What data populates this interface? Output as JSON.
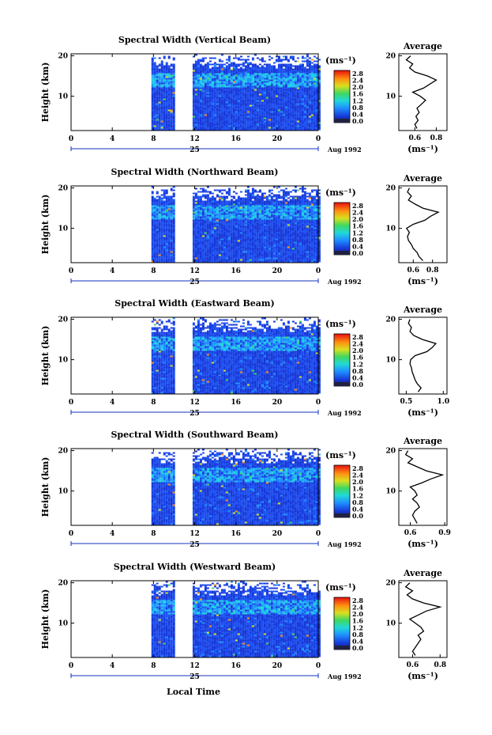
{
  "figure": {
    "bottom_label": "Local Time",
    "colorbar_unit": "(ms⁻¹)",
    "colorbar_ticks": [
      "2.8",
      "2.4",
      "2.0",
      "1.6",
      "1.2",
      "0.8",
      "0.4",
      "0.0"
    ],
    "avg_title": "Average",
    "avg_unit": "(ms⁻¹)",
    "date_label": "Aug 1992",
    "day_label": "25",
    "ylabel": "Height (km)"
  },
  "chart_data": [
    {
      "type": "heatmap",
      "title": "Spectral Width (Vertical Beam)",
      "ylabel": "Height (km)",
      "x_ticks": [
        "0",
        "4",
        "8",
        "12",
        "16",
        "20",
        "0"
      ],
      "xlim": [
        0,
        24
      ],
      "y_ticks": [
        "20",
        "10"
      ],
      "ylim": [
        1.5,
        20.5
      ],
      "day_label": "25",
      "date_label": "Aug 1992",
      "data_gaps_hours": [
        [
          0,
          7.8
        ],
        [
          10,
          11.8
        ]
      ],
      "colorbar": {
        "unit": "(ms⁻¹)",
        "range": [
          0.0,
          2.8
        ]
      },
      "average_profile": {
        "xlabel": "(ms⁻¹)",
        "x_ticks": [
          "0.6",
          "0.8"
        ],
        "xlim": [
          0.45,
          0.9
        ],
        "heights_km": [
          2,
          3,
          4,
          5,
          6,
          7,
          8,
          9,
          10,
          11,
          12,
          13,
          14,
          15,
          16,
          17,
          18,
          19,
          20
        ],
        "values": [
          0.62,
          0.6,
          0.63,
          0.61,
          0.64,
          0.62,
          0.66,
          0.7,
          0.65,
          0.58,
          0.68,
          0.74,
          0.8,
          0.72,
          0.6,
          0.55,
          0.58,
          0.52,
          0.56
        ]
      }
    },
    {
      "type": "heatmap",
      "title": "Spectral Width (Northward Beam)",
      "ylabel": "Height (km)",
      "x_ticks": [
        "0",
        "4",
        "8",
        "12",
        "16",
        "20",
        "0"
      ],
      "xlim": [
        0,
        24
      ],
      "y_ticks": [
        "20",
        "10"
      ],
      "ylim": [
        1.5,
        20.5
      ],
      "day_label": "25",
      "date_label": "Aug 1992",
      "data_gaps_hours": [
        [
          0,
          7.8
        ],
        [
          10,
          11.8
        ]
      ],
      "colorbar": {
        "unit": "(ms⁻¹)",
        "range": [
          0.0,
          2.8
        ]
      },
      "average_profile": {
        "xlabel": "(ms⁻¹)",
        "x_ticks": [
          "0.6",
          "0.8"
        ],
        "xlim": [
          0.45,
          0.95
        ],
        "heights_km": [
          2,
          3,
          4,
          5,
          6,
          7,
          8,
          9,
          10,
          11,
          12,
          13,
          14,
          15,
          16,
          17,
          18,
          19,
          20
        ],
        "values": [
          0.7,
          0.66,
          0.64,
          0.6,
          0.58,
          0.55,
          0.54,
          0.56,
          0.53,
          0.6,
          0.72,
          0.78,
          0.86,
          0.7,
          0.62,
          0.55,
          0.58,
          0.54,
          0.56
        ]
      }
    },
    {
      "type": "heatmap",
      "title": "Spectral Width (Eastward Beam)",
      "ylabel": "Height (km)",
      "x_ticks": [
        "0",
        "4",
        "8",
        "12",
        "16",
        "20",
        "0"
      ],
      "xlim": [
        0,
        24
      ],
      "y_ticks": [
        "20",
        "10"
      ],
      "ylim": [
        1.5,
        20.5
      ],
      "day_label": "25",
      "date_label": "Aug 1992",
      "data_gaps_hours": [
        [
          0,
          7.8
        ],
        [
          10,
          11.8
        ]
      ],
      "colorbar": {
        "unit": "(ms⁻¹)",
        "range": [
          0.0,
          2.8
        ]
      },
      "average_profile": {
        "xlabel": "(ms⁻¹)",
        "x_ticks": [
          "0.5",
          "1.0"
        ],
        "xlim": [
          0.4,
          1.05
        ],
        "heights_km": [
          2,
          3,
          4,
          5,
          6,
          7,
          8,
          9,
          10,
          11,
          12,
          13,
          14,
          15,
          16,
          17,
          18,
          19,
          20
        ],
        "values": [
          0.66,
          0.7,
          0.65,
          0.62,
          0.6,
          0.58,
          0.57,
          0.55,
          0.56,
          0.62,
          0.78,
          0.85,
          0.9,
          0.72,
          0.6,
          0.55,
          0.57,
          0.53,
          0.55
        ]
      }
    },
    {
      "type": "heatmap",
      "title": "Spectral Width (Southward Beam)",
      "ylabel": "Height (km)",
      "x_ticks": [
        "0",
        "4",
        "8",
        "12",
        "16",
        "20",
        "0"
      ],
      "xlim": [
        0,
        24
      ],
      "y_ticks": [
        "20",
        "10"
      ],
      "ylim": [
        1.5,
        20.5
      ],
      "day_label": "25",
      "date_label": "Aug 1992",
      "data_gaps_hours": [
        [
          0,
          7.8
        ],
        [
          10,
          11.8
        ]
      ],
      "colorbar": {
        "unit": "(ms⁻¹)",
        "range": [
          0.0,
          2.8
        ]
      },
      "average_profile": {
        "xlabel": "(ms⁻¹)",
        "x_ticks": [
          "0.6",
          "0.9"
        ],
        "xlim": [
          0.5,
          0.92
        ],
        "heights_km": [
          2,
          3,
          4,
          5,
          6,
          7,
          8,
          9,
          10,
          11,
          12,
          13,
          14,
          15,
          16,
          17,
          18,
          19,
          20
        ],
        "values": [
          0.66,
          0.64,
          0.62,
          0.64,
          0.68,
          0.66,
          0.62,
          0.66,
          0.64,
          0.6,
          0.7,
          0.78,
          0.88,
          0.74,
          0.66,
          0.58,
          0.62,
          0.56,
          0.58
        ]
      }
    },
    {
      "type": "heatmap",
      "title": "Spectral Width (Westward Beam)",
      "ylabel": "Height (km)",
      "x_ticks": [
        "0",
        "4",
        "8",
        "12",
        "16",
        "20",
        "0"
      ],
      "xlim": [
        0,
        24
      ],
      "y_ticks": [
        "20",
        "10"
      ],
      "ylim": [
        1.5,
        20.5
      ],
      "day_label": "25",
      "date_label": "Aug 1992",
      "data_gaps_hours": [
        [
          0,
          7.8
        ],
        [
          10,
          11.8
        ]
      ],
      "colorbar": {
        "unit": "(ms⁻¹)",
        "range": [
          0.0,
          2.8
        ]
      },
      "average_profile": {
        "xlabel": "(ms⁻¹)",
        "x_ticks": [
          "0.6",
          "0.8"
        ],
        "xlim": [
          0.5,
          0.85
        ],
        "heights_km": [
          2,
          3,
          4,
          5,
          6,
          7,
          8,
          9,
          10,
          11,
          12,
          13,
          14,
          15,
          16,
          17,
          18,
          19,
          20
        ],
        "values": [
          0.62,
          0.6,
          0.62,
          0.64,
          0.66,
          0.64,
          0.68,
          0.66,
          0.62,
          0.58,
          0.64,
          0.7,
          0.8,
          0.68,
          0.6,
          0.56,
          0.6,
          0.55,
          0.58
        ]
      }
    }
  ]
}
